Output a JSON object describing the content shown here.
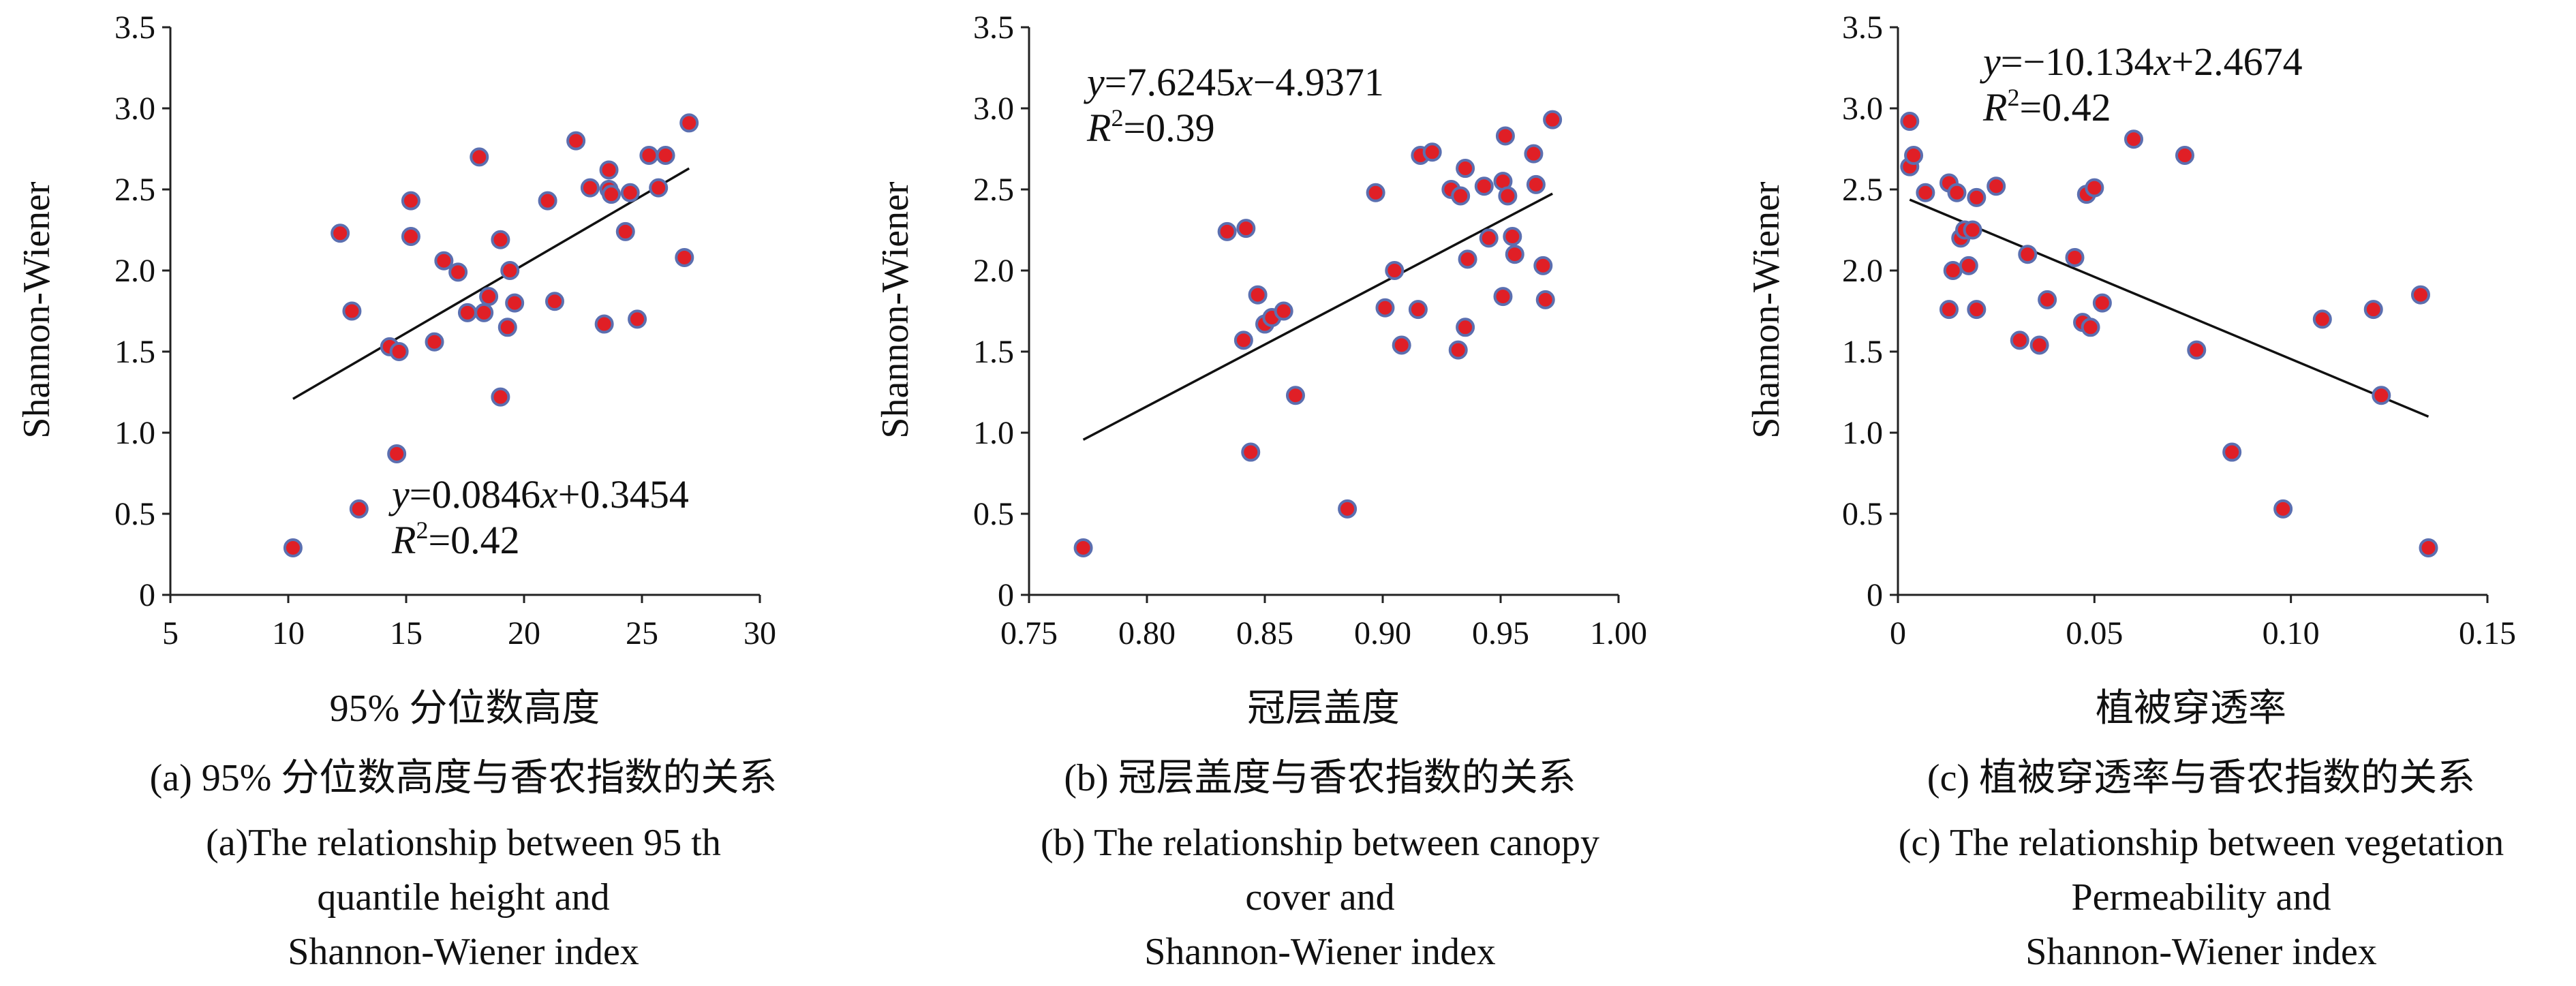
{
  "colors": {
    "point_fill": "#e01f26",
    "point_stroke": "#5b6fb0",
    "axis": "#222222",
    "fit_line": "#111111"
  },
  "chart_data": [
    {
      "id": "a",
      "type": "scatter",
      "xlabel": "95% 分位数高度",
      "ylabel": "Shannon-Wiener",
      "xlim": [
        5,
        30
      ],
      "ylim": [
        0,
        3.5
      ],
      "xticks": [
        "5",
        "10",
        "15",
        "20",
        "25",
        "30"
      ],
      "yticks": [
        "0",
        "0.5",
        "1.0",
        "1.5",
        "2.0",
        "2.5",
        "3.0",
        "3.5"
      ],
      "xtick_values": [
        5,
        10,
        15,
        20,
        25,
        30
      ],
      "ytick_values": [
        0,
        0.5,
        1.0,
        1.5,
        2.0,
        2.5,
        3.0,
        3.5
      ],
      "equation": {
        "prefix": "y",
        "body": "=0.0846",
        "var": "x",
        "suffix": "+0.3454"
      },
      "r2": {
        "base": "R",
        "sup": "2",
        "value": "=0.42"
      },
      "fit": {
        "slope": 0.0846,
        "intercept": 0.3454,
        "x_range": [
          10.2,
          27.0
        ]
      },
      "points": [
        [
          10.2,
          0.29
        ],
        [
          12.2,
          2.23
        ],
        [
          12.7,
          1.75
        ],
        [
          13.0,
          0.53
        ],
        [
          14.3,
          1.53
        ],
        [
          14.6,
          0.87
        ],
        [
          14.7,
          1.5
        ],
        [
          15.2,
          2.43
        ],
        [
          15.2,
          2.21
        ],
        [
          16.2,
          1.56
        ],
        [
          16.6,
          2.06
        ],
        [
          17.2,
          1.99
        ],
        [
          17.6,
          1.74
        ],
        [
          18.1,
          2.7
        ],
        [
          18.3,
          1.74
        ],
        [
          18.5,
          1.84
        ],
        [
          19.0,
          1.22
        ],
        [
          19.0,
          2.19
        ],
        [
          19.3,
          1.65
        ],
        [
          19.4,
          2.0
        ],
        [
          19.6,
          1.8
        ],
        [
          21.0,
          2.43
        ],
        [
          21.3,
          1.81
        ],
        [
          22.2,
          2.8
        ],
        [
          22.8,
          2.51
        ],
        [
          23.4,
          1.67
        ],
        [
          23.6,
          2.62
        ],
        [
          23.6,
          2.5
        ],
        [
          23.7,
          2.47
        ],
        [
          24.3,
          2.24
        ],
        [
          24.5,
          2.48
        ],
        [
          24.8,
          1.7
        ],
        [
          25.3,
          2.71
        ],
        [
          25.7,
          2.51
        ],
        [
          26.0,
          2.71
        ],
        [
          26.8,
          2.08
        ],
        [
          27.0,
          2.91
        ]
      ],
      "caption_cn": "(a) 95% 分位数高度与香农指数的关系",
      "caption_en": [
        "(a)The relationship between 95 th",
        "quantile height and",
        "Shannon-Wiener index"
      ]
    },
    {
      "id": "b",
      "type": "scatter",
      "xlabel": "冠层盖度",
      "ylabel": "Shannon-Wiener",
      "xlim": [
        0.75,
        1.0
      ],
      "ylim": [
        0,
        3.5
      ],
      "xticks": [
        "0.75",
        "0.80",
        "0.85",
        "0.90",
        "0.95",
        "1.00"
      ],
      "yticks": [
        "0",
        "0.5",
        "1.0",
        "1.5",
        "2.0",
        "2.5",
        "3.0",
        "3.5"
      ],
      "xtick_values": [
        0.75,
        0.8,
        0.85,
        0.9,
        0.95,
        1.0
      ],
      "ytick_values": [
        0,
        0.5,
        1.0,
        1.5,
        2.0,
        2.5,
        3.0,
        3.5
      ],
      "equation": {
        "prefix": "y",
        "body": "=7.6245",
        "var": "x",
        "suffix": "−4.9371"
      },
      "r2": {
        "base": "R",
        "sup": "2",
        "value": "=0.39"
      },
      "fit": {
        "slope": 7.6245,
        "intercept": -4.9371,
        "x_range": [
          0.773,
          0.972
        ]
      },
      "points": [
        [
          0.773,
          0.29
        ],
        [
          0.834,
          2.24
        ],
        [
          0.841,
          1.57
        ],
        [
          0.842,
          2.26
        ],
        [
          0.844,
          0.88
        ],
        [
          0.847,
          1.85
        ],
        [
          0.85,
          1.67
        ],
        [
          0.853,
          1.71
        ],
        [
          0.858,
          1.75
        ],
        [
          0.863,
          1.23
        ],
        [
          0.885,
          0.53
        ],
        [
          0.897,
          2.48
        ],
        [
          0.901,
          1.77
        ],
        [
          0.905,
          2.0
        ],
        [
          0.908,
          1.54
        ],
        [
          0.915,
          1.76
        ],
        [
          0.916,
          2.71
        ],
        [
          0.921,
          2.73
        ],
        [
          0.929,
          2.5
        ],
        [
          0.932,
          1.51
        ],
        [
          0.933,
          2.46
        ],
        [
          0.935,
          2.63
        ],
        [
          0.935,
          1.65
        ],
        [
          0.936,
          2.07
        ],
        [
          0.943,
          2.52
        ],
        [
          0.945,
          2.2
        ],
        [
          0.951,
          1.84
        ],
        [
          0.951,
          2.55
        ],
        [
          0.952,
          2.83
        ],
        [
          0.953,
          2.46
        ],
        [
          0.955,
          2.21
        ],
        [
          0.956,
          2.1
        ],
        [
          0.964,
          2.72
        ],
        [
          0.965,
          2.53
        ],
        [
          0.968,
          2.03
        ],
        [
          0.969,
          1.82
        ],
        [
          0.972,
          2.93
        ]
      ],
      "caption_cn": "(b) 冠层盖度与香农指数的关系",
      "caption_en": [
        "(b) The relationship between canopy",
        "cover and",
        "Shannon-Wiener index"
      ]
    },
    {
      "id": "c",
      "type": "scatter",
      "xlabel": "植被穿透率",
      "ylabel": "Shannon-Wiener",
      "xlim": [
        0,
        0.15
      ],
      "ylim": [
        0,
        3.5
      ],
      "xticks": [
        "0",
        "0.05",
        "0.10",
        "0.15"
      ],
      "yticks": [
        "0",
        "0.5",
        "1.0",
        "1.5",
        "2.0",
        "2.5",
        "3.0",
        "3.5"
      ],
      "xtick_values": [
        0,
        0.05,
        0.1,
        0.15
      ],
      "ytick_values": [
        0,
        0.5,
        1.0,
        1.5,
        2.0,
        2.5,
        3.0,
        3.5
      ],
      "equation": {
        "prefix": "y",
        "body": "=−10.134",
        "var": "x",
        "suffix": "+2.4674"
      },
      "r2": {
        "base": "R",
        "sup": "2",
        "value": "=0.42"
      },
      "fit": {
        "slope": -10.134,
        "intercept": 2.4674,
        "x_range": [
          0.003,
          0.135
        ]
      },
      "points": [
        [
          0.003,
          2.92
        ],
        [
          0.003,
          2.64
        ],
        [
          0.004,
          2.71
        ],
        [
          0.007,
          2.48
        ],
        [
          0.013,
          2.54
        ],
        [
          0.013,
          1.76
        ],
        [
          0.014,
          2.0
        ],
        [
          0.015,
          2.48
        ],
        [
          0.016,
          2.2
        ],
        [
          0.017,
          2.25
        ],
        [
          0.018,
          2.03
        ],
        [
          0.019,
          2.25
        ],
        [
          0.02,
          1.76
        ],
        [
          0.02,
          2.45
        ],
        [
          0.025,
          2.52
        ],
        [
          0.031,
          1.57
        ],
        [
          0.033,
          2.1
        ],
        [
          0.036,
          1.54
        ],
        [
          0.038,
          1.82
        ],
        [
          0.045,
          2.08
        ],
        [
          0.047,
          1.68
        ],
        [
          0.048,
          2.47
        ],
        [
          0.049,
          1.65
        ],
        [
          0.05,
          2.51
        ],
        [
          0.052,
          1.8
        ],
        [
          0.06,
          2.81
        ],
        [
          0.073,
          2.71
        ],
        [
          0.076,
          1.51
        ],
        [
          0.085,
          0.88
        ],
        [
          0.098,
          0.53
        ],
        [
          0.108,
          1.7
        ],
        [
          0.121,
          1.76
        ],
        [
          0.123,
          1.23
        ],
        [
          0.133,
          1.85
        ],
        [
          0.135,
          0.29
        ]
      ],
      "caption_cn": "(c) 植被穿透率与香农指数的关系",
      "caption_en": [
        "(c) The relationship between vegetation",
        "Permeability and",
        "Shannon-Wiener index"
      ]
    }
  ]
}
